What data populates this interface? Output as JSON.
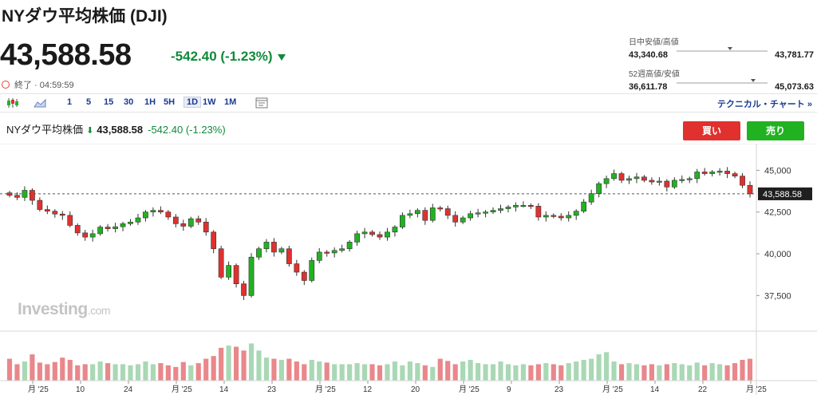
{
  "header": {
    "title": "NYダウ平均株価 (DJI)",
    "price": "43,588.58",
    "change": "-542.40 (-1.23%)",
    "status": "終了 · 04:59:59"
  },
  "ranges": {
    "day": {
      "label": "日中安値/高値",
      "low": "43,340.68",
      "high": "43,781.77",
      "position": 0.56
    },
    "week52": {
      "label": "52週高値/安値",
      "low": "36,611.78",
      "high": "45,073.63",
      "position": 0.82
    }
  },
  "toolbar": {
    "intervals": [
      "1",
      "5",
      "15",
      "30",
      "1H",
      "5H",
      "1D",
      "1W",
      "1M"
    ],
    "active_interval": "1D",
    "technical_chart": "テクニカル・チャート",
    "more": "»"
  },
  "chart_head": {
    "name": "NYダウ平均株価",
    "price": "43,588.58",
    "change": "-542.40 (-1.23%)"
  },
  "buttons": {
    "buy": "買い",
    "sell": "売り"
  },
  "watermark": {
    "brand": "Investing",
    "suffix": ".com"
  },
  "colors": {
    "up": "#21b221",
    "down": "#e0312f",
    "up_volume": "#a9d8b4",
    "down_volume": "#e9878a",
    "accent": "#1a3a8f"
  },
  "chart_data": {
    "type": "candlestick",
    "y_ticks": [
      45000,
      42500,
      40000,
      37500
    ],
    "ylim": [
      35700,
      46500
    ],
    "last_price": 43588.58,
    "last_price_label": "43,588.58",
    "x_labels": [
      "月 '25",
      "10",
      "24",
      "月 '25",
      "14",
      "23",
      "月 '25",
      "12",
      "20",
      "月 '25",
      "9",
      "23",
      "月 '25",
      "14",
      "22",
      "月 '25"
    ],
    "closes": [
      43500,
      43380,
      43800,
      43200,
      42650,
      42550,
      42380,
      42300,
      41700,
      41250,
      41000,
      41200,
      41600,
      41500,
      41620,
      41800,
      41900,
      42150,
      42500,
      42600,
      42500,
      42200,
      41800,
      41650,
      42100,
      41900,
      41300,
      40300,
      38600,
      39300,
      38200,
      37500,
      39800,
      40300,
      40700,
      40100,
      40300,
      39400,
      38900,
      38400,
      39600,
      40100,
      40050,
      40200,
      40300,
      40700,
      41200,
      41300,
      41150,
      41000,
      41300,
      41600,
      42300,
      42400,
      42600,
      42000,
      42750,
      42700,
      42300,
      41900,
      42150,
      42400,
      42450,
      42500,
      42600,
      42700,
      42800,
      42900,
      42900,
      42850,
      42200,
      42300,
      42250,
      42150,
      42300,
      42550,
      43100,
      43600,
      44200,
      44500,
      44800,
      44400,
      44500,
      44600,
      44400,
      44300,
      44350,
      44000,
      44400,
      44450,
      44500,
      44900,
      44800,
      44900,
      44950,
      44800,
      44650,
      44100,
      43588
    ],
    "volumes": [
      40,
      30,
      35,
      48,
      33,
      30,
      34,
      42,
      38,
      28,
      30,
      30,
      35,
      32,
      30,
      30,
      28,
      30,
      35,
      30,
      32,
      28,
      25,
      34,
      28,
      32,
      40,
      45,
      60,
      64,
      62,
      55,
      68,
      55,
      42,
      40,
      38,
      40,
      35,
      30,
      38,
      35,
      33,
      30,
      30,
      30,
      32,
      30,
      30,
      28,
      30,
      35,
      28,
      35,
      32,
      28,
      25,
      40,
      36,
      30,
      35,
      38,
      32,
      30,
      30,
      35,
      30,
      28,
      30,
      28,
      30,
      32,
      30,
      28,
      32,
      35,
      38,
      40,
      48,
      52,
      35,
      30,
      32,
      30,
      28,
      30,
      28,
      30,
      32,
      30,
      28,
      33,
      28,
      32,
      30,
      28,
      32,
      38,
      40
    ]
  }
}
